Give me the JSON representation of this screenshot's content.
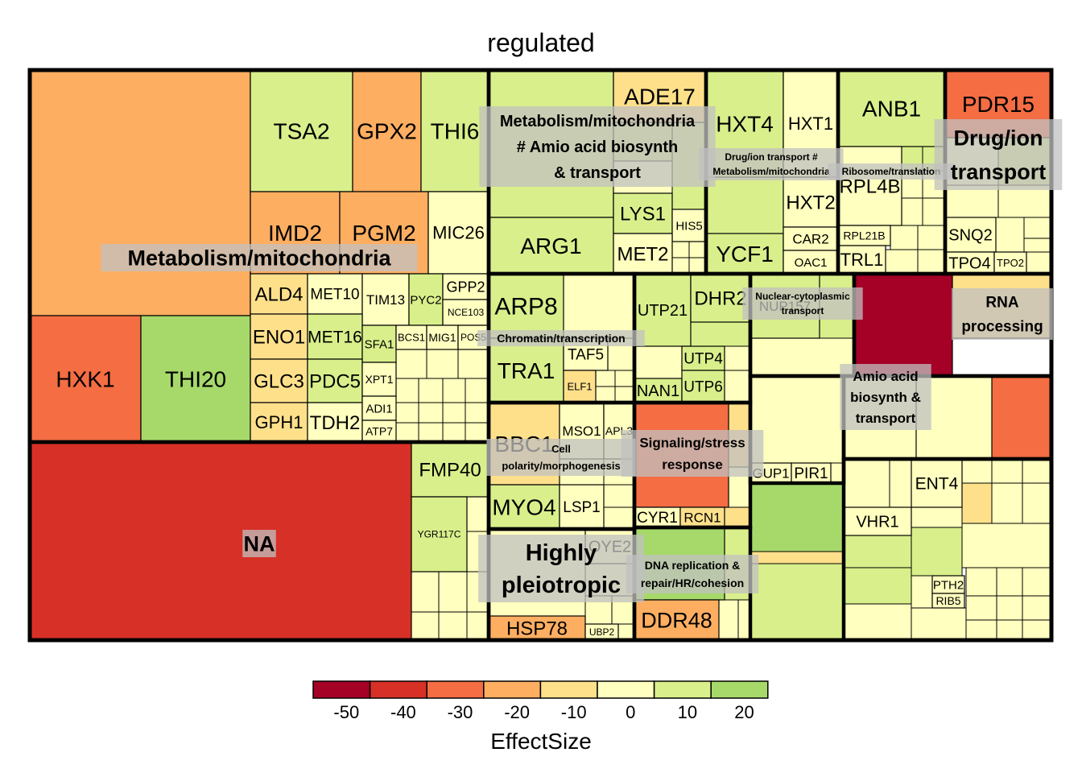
{
  "chart_data": {
    "type": "treemap",
    "title": "regulated",
    "legend": {
      "title": "EffectSize",
      "ticks": [
        "-50",
        "-40",
        "-30",
        "-20",
        "-10",
        "0",
        "10",
        "20"
      ],
      "bins": [
        -55,
        -45,
        -35,
        -25,
        -15,
        -5,
        5,
        15,
        25
      ],
      "colors": [
        "#a50026",
        "#d73027",
        "#f46d43",
        "#fdae61",
        "#fee08b",
        "#ffffbf",
        "#d9ef8b",
        "#a6d96a"
      ],
      "placement": "bottom"
    },
    "groups": [
      {
        "name": "Metabolism/mitochondria",
        "items": [
          {
            "gene": "",
            "effect": -22
          },
          {
            "gene": "TSA2",
            "effect": 8
          },
          {
            "gene": "GPX2",
            "effect": -25
          },
          {
            "gene": "THI6",
            "effect": 10
          },
          {
            "gene": "IMD2",
            "effect": -16
          },
          {
            "gene": "PGM2",
            "effect": -22
          },
          {
            "gene": "MIC26",
            "effect": 4
          },
          {
            "gene": "HXK1",
            "effect": -32
          },
          {
            "gene": "THI20",
            "effect": 16
          },
          {
            "gene": "ALD4",
            "effect": -12
          },
          {
            "gene": "MET10",
            "effect": 0
          },
          {
            "gene": "TIM13",
            "effect": -4
          },
          {
            "gene": "PYC2",
            "effect": 10
          },
          {
            "gene": "GPP2",
            "effect": 4
          },
          {
            "gene": "NCE103",
            "effect": 1
          },
          {
            "gene": "ENO1",
            "effect": -11
          },
          {
            "gene": "MET16",
            "effect": 6
          },
          {
            "gene": "SFA1",
            "effect": 10
          },
          {
            "gene": "BCS1",
            "effect": 1
          },
          {
            "gene": "MIG1",
            "effect": 2
          },
          {
            "gene": "POS5",
            "effect": 1
          },
          {
            "gene": "GLC3",
            "effect": -11
          },
          {
            "gene": "PDC5",
            "effect": 8
          },
          {
            "gene": "XPT1",
            "effect": 1
          },
          {
            "gene": "GPH1",
            "effect": -12
          },
          {
            "gene": "TDH2",
            "effect": -2
          },
          {
            "gene": "ADI1",
            "effect": 1
          },
          {
            "gene": "ATP7",
            "effect": 1
          }
        ]
      },
      {
        "name": "NA",
        "items": [
          {
            "gene": "",
            "effect": -40
          },
          {
            "gene": "FMP40",
            "effect": 8
          },
          {
            "gene": "YGR117C",
            "effect": 6
          }
        ]
      },
      {
        "name": "Metabolism/mitochondria # Amio acid biosynth & transport",
        "items": [
          {
            "gene": "",
            "effect": 10
          },
          {
            "gene": "ADE17",
            "effect": -12
          },
          {
            "gene": "ARG1",
            "effect": 14
          },
          {
            "gene": "LYS1",
            "effect": 6
          },
          {
            "gene": "HIS5",
            "effect": 4
          },
          {
            "gene": "MET2",
            "effect": 1
          }
        ]
      },
      {
        "name": "Drug/ion transport # Metabolism/mitochondria",
        "items": [
          {
            "gene": "HXT4",
            "effect": 6
          },
          {
            "gene": "HXT1",
            "effect": 1
          },
          {
            "gene": "HXT2",
            "effect": 1
          },
          {
            "gene": "YCF1",
            "effect": 14
          },
          {
            "gene": "CAR2",
            "effect": 1
          },
          {
            "gene": "OAC1",
            "effect": 1
          }
        ]
      },
      {
        "name": "Ribosome/translation",
        "items": [
          {
            "gene": "ANB1",
            "effect": 6
          },
          {
            "gene": "RPL4B",
            "effect": 3
          },
          {
            "gene": "RPL21B",
            "effect": 4
          },
          {
            "gene": "TRL1",
            "effect": 2
          }
        ]
      },
      {
        "name": "Drug/ion transport",
        "items": [
          {
            "gene": "PDR15",
            "effect": -32
          },
          {
            "gene": "SNQ2",
            "effect": 2
          },
          {
            "gene": "TPO4",
            "effect": 2
          },
          {
            "gene": "TPO2",
            "effect": 1
          }
        ]
      },
      {
        "name": "Chromatin/transcription",
        "items": [
          {
            "gene": "ARP8",
            "effect": 14
          },
          {
            "gene": "TRA1",
            "effect": 10
          },
          {
            "gene": "TAF5",
            "effect": 2
          },
          {
            "gene": "ELF1",
            "effect": -6
          }
        ]
      },
      {
        "name": "Cell polarity/morphogenesis",
        "items": [
          {
            "gene": "BBC1",
            "effect": -6
          },
          {
            "gene": "MSO1",
            "effect": 0
          },
          {
            "gene": "APL3",
            "effect": 4
          },
          {
            "gene": "MYO4",
            "effect": 10
          },
          {
            "gene": "LSP1",
            "effect": 2
          }
        ]
      },
      {
        "name": "Highly pleiotropic",
        "items": [
          {
            "gene": "OYE2",
            "effect": 1
          },
          {
            "gene": "HSP78",
            "effect": -20
          },
          {
            "gene": "UBP2",
            "effect": 1
          }
        ]
      },
      {
        "name": "",
        "items": [
          {
            "gene": "UTP21",
            "effect": 8
          },
          {
            "gene": "DHR2",
            "effect": 6
          },
          {
            "gene": "UTP4",
            "effect": 6
          },
          {
            "gene": "NAN1",
            "effect": 8
          },
          {
            "gene": "UTP6",
            "effect": 6
          }
        ]
      },
      {
        "name": "Nuclear-cytoplasmic transport",
        "items": [
          {
            "gene": "NUP157",
            "effect": 6
          }
        ]
      },
      {
        "name": "RNA processing",
        "items": [
          {
            "gene": "",
            "effect": -55
          },
          {
            "gene": "",
            "effect": -14
          }
        ]
      },
      {
        "name": "Signaling/stress response",
        "items": [
          {
            "gene": "",
            "effect": -35
          },
          {
            "gene": "CYR1",
            "effect": -4
          },
          {
            "gene": "RCN1",
            "effect": -15
          }
        ]
      },
      {
        "name": "DNA replication & repair/HR/cohesion",
        "items": [
          {
            "gene": "",
            "effect": 16
          },
          {
            "gene": "DDR48",
            "effect": -20
          }
        ]
      },
      {
        "name": "",
        "items": [
          {
            "gene": "GUP1",
            "effect": 4
          },
          {
            "gene": "PIR1",
            "effect": 1
          }
        ]
      },
      {
        "name": "Amio acid biosynth & transport",
        "items": [
          {
            "gene": "",
            "effect": 0
          },
          {
            "gene": "",
            "effect": -32
          }
        ]
      },
      {
        "name": "",
        "items": [
          {
            "gene": "ENT4",
            "effect": 1
          },
          {
            "gene": "VHR1",
            "effect": 1
          },
          {
            "gene": "PTH2",
            "effect": 2
          },
          {
            "gene": "RIB5",
            "effect": 2
          }
        ]
      }
    ]
  }
}
